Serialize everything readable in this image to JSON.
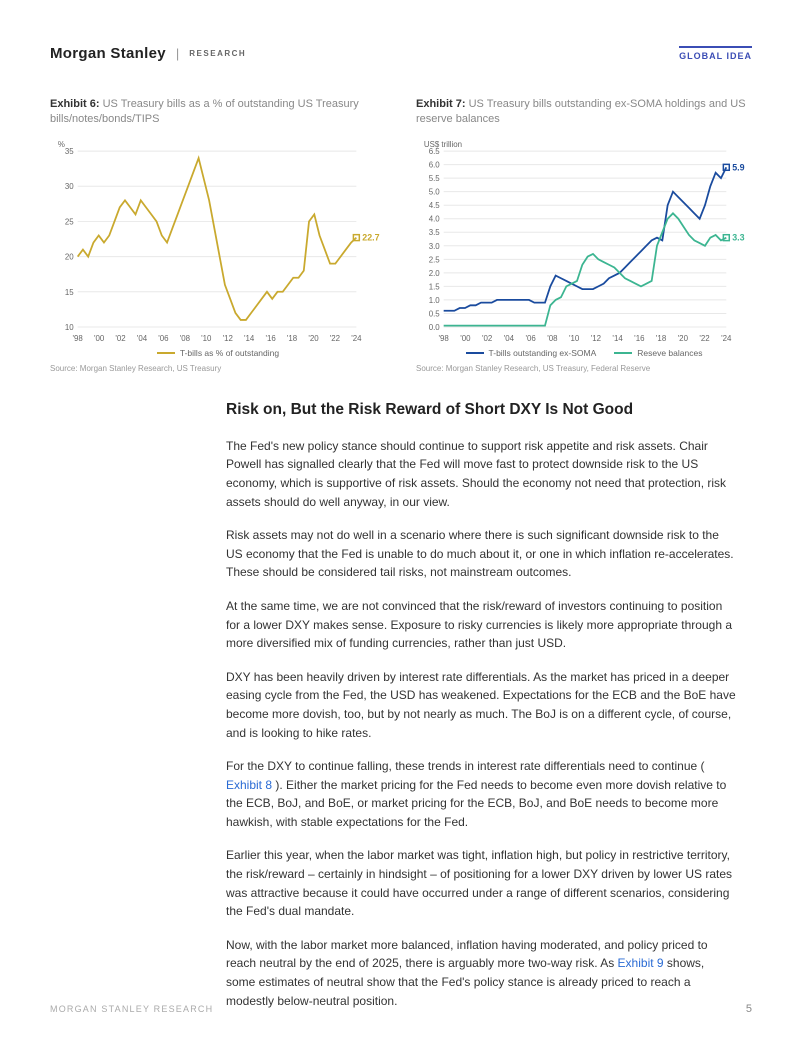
{
  "header": {
    "brand": "Morgan Stanley",
    "sub": "RESEARCH",
    "tag": "GLOBAL IDEA"
  },
  "exhibit6": {
    "label": "Exhibit 6:",
    "title": "US Treasury bills as a % of outstanding US Treasury bills/notes/bonds/TIPS",
    "type": "line",
    "y_label": "%",
    "ylim": [
      10,
      35
    ],
    "ytick_step": 5,
    "x_ticks": [
      "'98",
      "'00",
      "'02",
      "'04",
      "'06",
      "'08",
      "'10",
      "'12",
      "'14",
      "'16",
      "'18",
      "'20",
      "'22",
      "'24"
    ],
    "series_color": "#c9a92e",
    "end_value": "22.7",
    "end_marker_color": "#c9a92e",
    "background_color": "#ffffff",
    "grid_color": "#e8e8e8",
    "legend_label": "T-bills as % of outstanding",
    "source": "Source: Morgan Stanley Research, US Treasury",
    "data": [
      20,
      21,
      20,
      22,
      23,
      22,
      23,
      25,
      27,
      28,
      27,
      26,
      28,
      27,
      26,
      25,
      23,
      22,
      24,
      26,
      28,
      30,
      32,
      34,
      31,
      28,
      24,
      20,
      16,
      14,
      12,
      11,
      11,
      12,
      13,
      14,
      15,
      14,
      15,
      15,
      16,
      17,
      17,
      18,
      25,
      26,
      23,
      21,
      19,
      19,
      20,
      21,
      22,
      22.7
    ]
  },
  "exhibit7": {
    "label": "Exhibit 7:",
    "title": "US Treasury bills outstanding ex-SOMA holdings and US reserve balances",
    "type": "line",
    "y_label": "US$ trillion",
    "ylim": [
      0,
      6.5
    ],
    "ytick_step": 0.5,
    "x_ticks": [
      "'98",
      "'00",
      "'02",
      "'04",
      "'06",
      "'08",
      "'10",
      "'12",
      "'14",
      "'16",
      "'18",
      "'20",
      "'22",
      "'24"
    ],
    "series": [
      {
        "name": "T-bills outstanding ex-SOMA",
        "color": "#1a4b9e",
        "end_value": "5.9",
        "data": [
          0.6,
          0.6,
          0.6,
          0.7,
          0.7,
          0.8,
          0.8,
          0.9,
          0.9,
          0.9,
          1.0,
          1.0,
          1.0,
          1.0,
          1.0,
          1.0,
          1.0,
          0.9,
          0.9,
          0.9,
          1.5,
          1.9,
          1.8,
          1.7,
          1.6,
          1.5,
          1.4,
          1.4,
          1.4,
          1.5,
          1.6,
          1.8,
          1.9,
          2.0,
          2.2,
          2.4,
          2.6,
          2.8,
          3.0,
          3.2,
          3.3,
          3.2,
          4.5,
          5.0,
          4.8,
          4.6,
          4.4,
          4.2,
          4.0,
          4.5,
          5.2,
          5.7,
          5.5,
          5.9
        ]
      },
      {
        "name": "Reseve balances",
        "color": "#3cb591",
        "end_value": "3.3",
        "data": [
          0.05,
          0.05,
          0.05,
          0.05,
          0.05,
          0.05,
          0.05,
          0.05,
          0.05,
          0.05,
          0.05,
          0.05,
          0.05,
          0.05,
          0.05,
          0.05,
          0.05,
          0.05,
          0.05,
          0.05,
          0.8,
          1.0,
          1.1,
          1.5,
          1.6,
          1.7,
          2.3,
          2.6,
          2.7,
          2.5,
          2.4,
          2.3,
          2.2,
          2.0,
          1.8,
          1.7,
          1.6,
          1.5,
          1.6,
          1.7,
          3.0,
          3.5,
          4.0,
          4.2,
          4.0,
          3.7,
          3.4,
          3.2,
          3.1,
          3.0,
          3.3,
          3.4,
          3.2,
          3.3
        ]
      }
    ],
    "background_color": "#ffffff",
    "grid_color": "#e8e8e8",
    "source": "Source: Morgan Stanley Research, US Treasury, Federal Reserve"
  },
  "section": {
    "title": "Risk on, But the Risk Reward of Short DXY Is Not Good",
    "paragraphs": [
      "The Fed's new policy stance should continue to support risk appetite and risk assets. Chair Powell has signalled clearly that the Fed will move fast to protect downside risk to the US economy, which is supportive of risk assets. Should the economy not need that protection, risk assets should do well anyway, in our view.",
      "Risk assets may not do well in a scenario where there is such significant downside risk to the US economy that the Fed is unable to do much about it, or one in which inflation re-accelerates. These should be considered tail risks, not mainstream outcomes.",
      "At the same time, we are not convinced that the risk/reward of investors continuing to position for a lower DXY makes sense. Exposure to risky currencies is likely more appropriate through a more diversified mix of funding currencies, rather than just USD.",
      "DXY has been heavily driven by interest rate differentials. As the market has priced in a deeper easing cycle from the Fed, the USD has weakened. Expectations for the ECB and the BoE have become more dovish, too, but by not nearly as much. The BoJ is on a different cycle, of course, and is looking to hike rates."
    ],
    "para5_parts": [
      "For the DXY to continue falling, these trends in interest rate differentials need to continue ( ",
      "Exhibit 8",
      " ). Either the market pricing for the Fed needs to become even more dovish relative to the ECB, BoJ, and BoE, or market pricing for the ECB, BoJ, and BoE needs to become more hawkish, with stable expectations for the Fed."
    ],
    "para6": "Earlier this year, when the labor market was tight, inflation high, but policy in restrictive territory, the risk/reward – certainly in hindsight – of positioning for a lower DXY driven by lower US rates was attractive because it could have occurred under a range of different scenarios, considering the Fed's dual mandate.",
    "para7_parts": [
      "Now, with the labor market more balanced, inflation having moderated, and policy priced to reach neutral by the end of 2025, there is arguably more two-way risk. As ",
      "Exhibit 9",
      " shows, some estimates of neutral show that the Fed's policy stance is already priced to reach a modestly below-neutral position."
    ]
  },
  "footer": {
    "text": "MORGAN STANLEY RESEARCH",
    "page": "5"
  }
}
